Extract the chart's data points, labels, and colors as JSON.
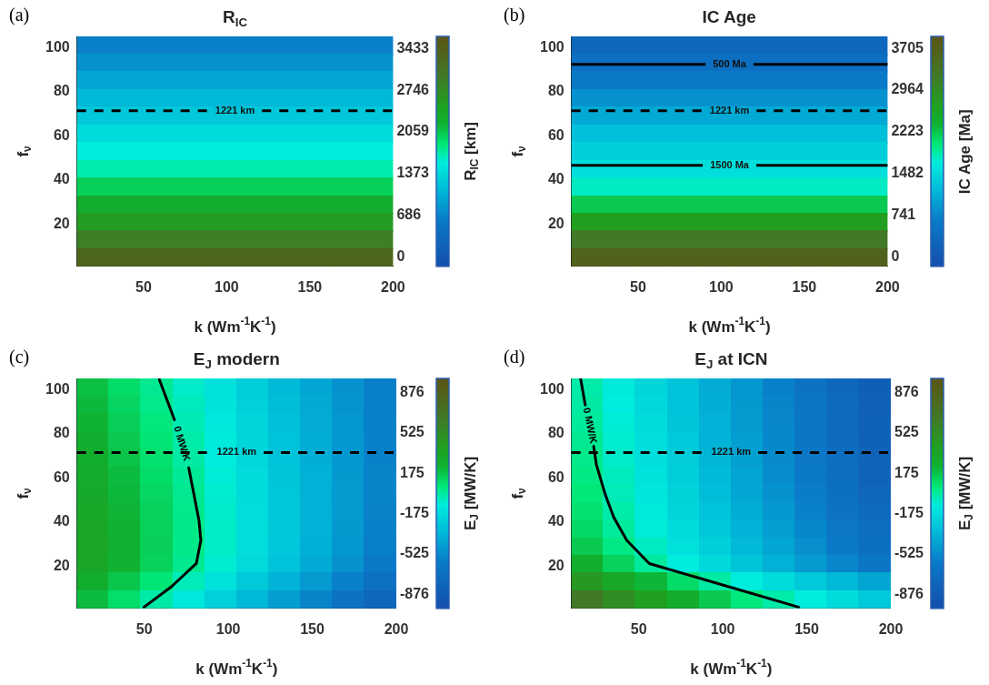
{
  "chart_data": [
    {
      "type": "heatmap",
      "title": "R$_{IC}$",
      "xlabel": "k (Wm$^{-1}$K$^{-1}$)",
      "ylabel": "f$_{ν}$",
      "clabel": "R$_{IC}$ [km]",
      "annotations": [
        "(a)"
      ],
      "xlim": [
        10,
        200
      ],
      "xticks": [
        50,
        100,
        150,
        200
      ],
      "ylim": [
        1,
        105
      ],
      "yticks": [
        20,
        40,
        60,
        80,
        100
      ],
      "clim": [
        -150,
        3630
      ],
      "cticks": [
        0,
        686,
        1373,
        2059,
        2746,
        3433
      ],
      "ref_lines": [
        {
          "axis": "y",
          "value": 71.4,
          "label": "1221 km",
          "color": "#000000",
          "line_style": "dashed"
        }
      ],
      "cells": [
        [
          650,
          650,
          650,
          650,
          650,
          650,
          650,
          650,
          650,
          650
        ],
        [
          800,
          800,
          800,
          800,
          800,
          800,
          800,
          800,
          800,
          800
        ],
        [
          950,
          950,
          950,
          950,
          950,
          950,
          950,
          950,
          950,
          950
        ],
        [
          1100,
          1100,
          1100,
          1100,
          1100,
          1100,
          1100,
          1100,
          1100,
          1100
        ],
        [
          1230,
          1230,
          1230,
          1230,
          1230,
          1230,
          1230,
          1230,
          1230,
          1230
        ],
        [
          1400,
          1400,
          1400,
          1400,
          1400,
          1400,
          1400,
          1400,
          1400,
          1400
        ],
        [
          1550,
          1550,
          1550,
          1550,
          1550,
          1550,
          1550,
          1550,
          1550,
          1550
        ],
        [
          1700,
          1700,
          1700,
          1700,
          1700,
          1700,
          1700,
          1700,
          1700,
          1700
        ],
        [
          2000,
          2000,
          2000,
          2000,
          2000,
          2000,
          2000,
          2000,
          2000,
          2000
        ],
        [
          2250,
          2250,
          2250,
          2250,
          2250,
          2250,
          2250,
          2250,
          2250,
          2250
        ],
        [
          2550,
          2550,
          2550,
          2550,
          2550,
          2550,
          2550,
          2550,
          2550,
          2550
        ],
        [
          2900,
          2900,
          2900,
          2900,
          2900,
          2900,
          2900,
          2900,
          2900,
          2900
        ],
        [
          3300,
          3300,
          3300,
          3300,
          3300,
          3300,
          3300,
          3300,
          3300,
          3300
        ]
      ]
    },
    {
      "type": "heatmap",
      "title": "IC Age",
      "xlabel": "k (Wm$^{-1}$K$^{-1}$)",
      "ylabel": "f$_{ν}$",
      "clabel": "IC Age [Ma]",
      "annotations": [
        "(b)"
      ],
      "xlim": [
        10,
        200
      ],
      "xticks": [
        50,
        100,
        150,
        200
      ],
      "ylim": [
        1,
        105
      ],
      "yticks": [
        20,
        40,
        60,
        80,
        100
      ],
      "clim": [
        -170,
        3920
      ],
      "cticks": [
        0,
        741,
        1482,
        2223,
        2964,
        3705
      ],
      "ref_lines": [
        {
          "axis": "y",
          "value": 92.3,
          "label": "500 Ma",
          "color": "#000000",
          "line_style": "solid"
        },
        {
          "axis": "y",
          "value": 71.4,
          "label": "1221 km",
          "color": "#000000",
          "line_style": "dashed"
        },
        {
          "axis": "y",
          "value": 46.7,
          "label": "1500 Ma",
          "color": "#000000",
          "line_style": "solid"
        }
      ],
      "cells": [
        [
          300,
          300,
          300,
          300,
          300,
          300,
          300,
          300,
          300,
          300
        ],
        [
          450,
          450,
          450,
          450,
          450,
          450,
          450,
          450,
          450,
          450
        ],
        [
          650,
          650,
          650,
          650,
          650,
          650,
          650,
          650,
          650,
          650
        ],
        [
          850,
          850,
          850,
          850,
          850,
          850,
          850,
          850,
          850,
          850
        ],
        [
          1050,
          1050,
          1050,
          1050,
          1050,
          1050,
          1050,
          1050,
          1050,
          1050
        ],
        [
          1250,
          1250,
          1250,
          1250,
          1250,
          1250,
          1250,
          1250,
          1250,
          1250
        ],
        [
          1400,
          1400,
          1400,
          1400,
          1400,
          1400,
          1400,
          1400,
          1400,
          1400
        ],
        [
          1550,
          1550,
          1550,
          1550,
          1550,
          1550,
          1550,
          1550,
          1550,
          1550
        ],
        [
          1750,
          1750,
          1750,
          1750,
          1750,
          1750,
          1750,
          1750,
          1750,
          1750
        ],
        [
          2200,
          2200,
          2200,
          2200,
          2200,
          2200,
          2200,
          2200,
          2200,
          2200
        ],
        [
          2700,
          2700,
          2700,
          2700,
          2700,
          2700,
          2700,
          2700,
          2700,
          2700
        ],
        [
          3200,
          3200,
          3200,
          3200,
          3200,
          3200,
          3200,
          3200,
          3200,
          3200
        ],
        [
          3650,
          3650,
          3650,
          3650,
          3650,
          3650,
          3650,
          3650,
          3650,
          3650
        ]
      ]
    },
    {
      "type": "heatmap",
      "title": "E$_{J}$ modern",
      "xlabel": "k (Wm$^{-1}$K$^{-1}$)",
      "ylabel": "f$_{ν}$",
      "clabel": "E$_{J}$ [MW/K]",
      "annotations": [
        "(c)"
      ],
      "xlim": [
        10,
        200
      ],
      "xticks": [
        50,
        100,
        150,
        200
      ],
      "ylim": [
        1,
        105
      ],
      "yticks": [
        20,
        40,
        60,
        80,
        100
      ],
      "clim": [
        -1000,
        1000
      ],
      "cticks": [
        -876,
        -525,
        -175,
        175,
        525,
        876
      ],
      "ref_lines": [
        {
          "axis": "y",
          "value": 71.5,
          "label": "1221 km",
          "color": "#000000",
          "line_style": "dashed"
        }
      ],
      "series": [
        {
          "type": "line",
          "name": "0 MW/K",
          "color": "#000000",
          "x": [
            59,
            68,
            72,
            76.5,
            82.6,
            83.7,
            81,
            66.3,
            49.9
          ],
          "values": [
            104.5,
            86.3,
            null,
            64.6,
            40.7,
            31.8,
            21.3,
            10.9,
            1.6
          ]
        }
      ],
      "cells": [
        [
          190,
          100,
          20,
          -70,
          -150,
          -240,
          -330,
          -410,
          -500,
          -580
        ],
        [
          210,
          120,
          30,
          -50,
          -140,
          -230,
          -315,
          -400,
          -490,
          -580
        ],
        [
          230,
          140,
          50,
          -35,
          -125,
          -215,
          -300,
          -390,
          -480,
          -570
        ],
        [
          250,
          160,
          70,
          -20,
          -110,
          -200,
          -295,
          -385,
          -475,
          -570
        ],
        [
          270,
          180,
          85,
          -10,
          -100,
          -195,
          -290,
          -380,
          -475,
          -570
        ],
        [
          290,
          200,
          100,
          10,
          -90,
          -180,
          -280,
          -370,
          -470,
          -560
        ],
        [
          310,
          210,
          115,
          20,
          -80,
          -175,
          -275,
          -370,
          -465,
          -560
        ],
        [
          325,
          225,
          130,
          30,
          -70,
          -170,
          -270,
          -365,
          -465,
          -565
        ],
        [
          335,
          235,
          135,
          35,
          -65,
          -165,
          -270,
          -370,
          -470,
          -570
        ],
        [
          345,
          240,
          140,
          35,
          -65,
          -170,
          -270,
          -375,
          -480,
          -580
        ],
        [
          340,
          235,
          130,
          25,
          -80,
          -185,
          -290,
          -395,
          -500,
          -600
        ],
        [
          275,
          170,
          65,
          -40,
          -150,
          -255,
          -360,
          -465,
          -575,
          -680
        ],
        [
          200,
          95,
          -15,
          -125,
          -230,
          -340,
          -450,
          -560,
          -665,
          -775
        ]
      ]
    },
    {
      "type": "heatmap",
      "title": "E$_{J}$ at ICN",
      "xlabel": "k (Wm$^{-1}$K$^{-1}$)",
      "ylabel": "f$_{ν}$",
      "clabel": "E$_{J}$ [MW/K]",
      "annotations": [
        "(d)"
      ],
      "xlim": [
        10,
        200
      ],
      "xticks": [
        50,
        100,
        150,
        200
      ],
      "ylim": [
        1,
        105
      ],
      "yticks": [
        20,
        40,
        60,
        80,
        100
      ],
      "clim": [
        -1000,
        1000
      ],
      "cticks": [
        -876,
        -525,
        -175,
        175,
        525,
        876
      ],
      "ref_lines": [
        {
          "axis": "y",
          "value": 71.5,
          "label": "1221 km",
          "color": "#000000",
          "line_style": "dashed"
        }
      ],
      "series": [
        {
          "type": "line",
          "name": "0 MW/K",
          "color": "#000000",
          "x": [
            15.5,
            18.2,
            20.5,
            23.2,
            24.8,
            30,
            35.1,
            42.9,
            56.3,
            145.1
          ],
          "values": [
            104.6,
            93,
            null,
            74.3,
            66.1,
            52.7,
            42.3,
            31.8,
            21.3,
            1.6
          ]
        }
      ],
      "cells": [
        [
          -20,
          -110,
          -200,
          -290,
          -390,
          -480,
          -570,
          -660,
          -760,
          -850
        ],
        [
          -10,
          -100,
          -190,
          -290,
          -380,
          -470,
          -560,
          -650,
          -750,
          -840
        ],
        [
          0,
          -90,
          -180,
          -280,
          -370,
          -460,
          -550,
          -640,
          -740,
          -830
        ],
        [
          20,
          -80,
          -170,
          -260,
          -360,
          -450,
          -540,
          -640,
          -730,
          -820
        ],
        [
          30,
          -70,
          -160,
          -250,
          -350,
          -440,
          -530,
          -630,
          -720,
          -810
        ],
        [
          40,
          -50,
          -145,
          -240,
          -330,
          -420,
          -520,
          -610,
          -700,
          -800
        ],
        [
          60,
          -40,
          -130,
          -220,
          -310,
          -410,
          -500,
          -590,
          -690,
          -780
        ],
        [
          80,
          -20,
          -110,
          -200,
          -290,
          -385,
          -475,
          -570,
          -660,
          -750
        ],
        [
          110,
          0,
          -90,
          -180,
          -270,
          -360,
          -450,
          -540,
          -630,
          -720
        ],
        [
          160,
          40,
          -60,
          -150,
          -240,
          -330,
          -420,
          -510,
          -600,
          -690
        ],
        [
          260,
          130,
          0,
          -100,
          -190,
          -280,
          -370,
          -460,
          -550,
          -640
        ],
        [
          450,
          330,
          220,
          100,
          -10,
          -100,
          -180,
          -260,
          -340,
          -420
        ],
        [
          650,
          520,
          400,
          280,
          160,
          50,
          -20,
          -100,
          -180,
          -260
        ]
      ]
    }
  ]
}
